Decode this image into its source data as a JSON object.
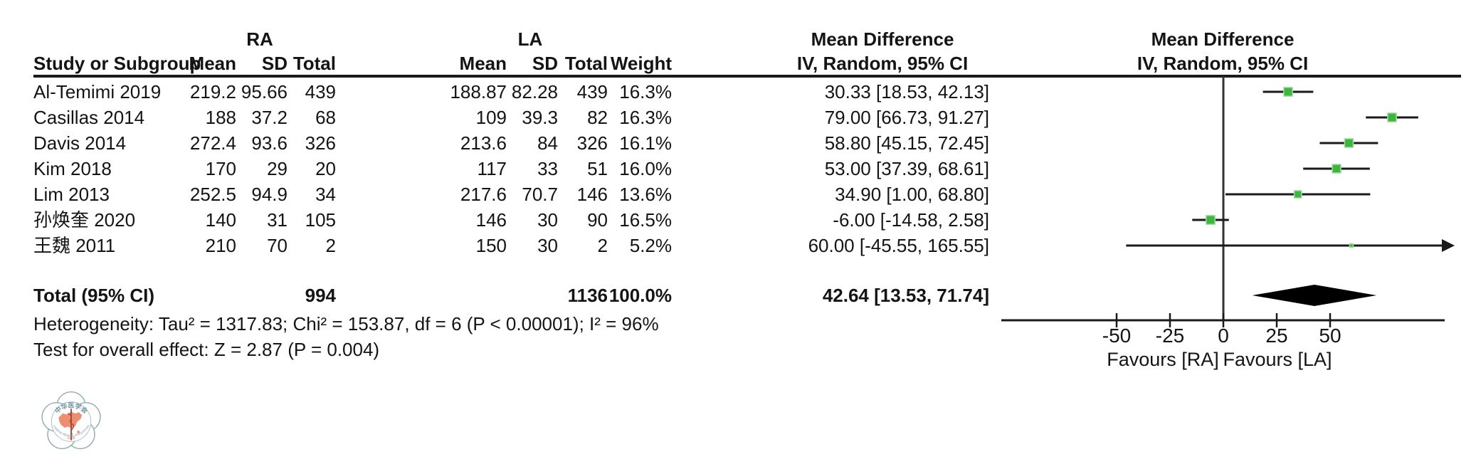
{
  "header": {
    "group_ra": "RA",
    "group_la": "LA",
    "col_study": "Study or Subgroup",
    "col_mean": "Mean",
    "col_sd": "SD",
    "col_total": "Total",
    "col_weight": "Weight",
    "md_title": "Mean Difference",
    "md_subtitle": "IV, Random, 95% CI",
    "plot_title": "Mean Difference",
    "plot_subtitle": "IV, Random, 95% CI"
  },
  "footnotes": {
    "heterogeneity": "Heterogeneity: Tau² = 1317.83; Chi² = 153.87, df = 6 (P < 0.00001); I² = 96%",
    "overall_effect": "Test for overall effect: Z = 2.87 (P = 0.004)"
  },
  "logo": {
    "top_text": "中华医学会",
    "bottom_text": "CHINESE MEDICAL ASSOCIATION",
    "year": "1915",
    "outline_color": "#8aa6ac",
    "text_color": "#6a93a0",
    "map_color": "#ee8e70",
    "staff_color": "#a14a38"
  },
  "chart_data": {
    "type": "forest",
    "effect_measure": "Mean Difference",
    "model": "IV, Random, 95% CI",
    "marker_color": "#3eb53e",
    "marker_edge_color": "#a4dca4",
    "line_color": "#1a1a1a",
    "diamond_color": "#000000",
    "studies": [
      {
        "name": "Al-Temimi 2019",
        "ra_mean": "219.2",
        "ra_sd": "95.66",
        "ra_total": "439",
        "la_mean": "188.87",
        "la_sd": "82.28",
        "la_total": "439",
        "weight": "16.3%",
        "ci_text": "30.33 [18.53, 42.13]",
        "md": 30.33,
        "lo": 18.53,
        "hi": 42.13,
        "w": 16.3
      },
      {
        "name": "Casillas 2014",
        "ra_mean": "188",
        "ra_sd": "37.2",
        "ra_total": "68",
        "la_mean": "109",
        "la_sd": "39.3",
        "la_total": "82",
        "weight": "16.3%",
        "ci_text": "79.00 [66.73, 91.27]",
        "md": 79.0,
        "lo": 66.73,
        "hi": 91.27,
        "w": 16.3
      },
      {
        "name": "Davis 2014",
        "ra_mean": "272.4",
        "ra_sd": "93.6",
        "ra_total": "326",
        "la_mean": "213.6",
        "la_sd": "84",
        "la_total": "326",
        "weight": "16.1%",
        "ci_text": "58.80 [45.15, 72.45]",
        "md": 58.8,
        "lo": 45.15,
        "hi": 72.45,
        "w": 16.1
      },
      {
        "name": "Kim 2018",
        "ra_mean": "170",
        "ra_sd": "29",
        "ra_total": "20",
        "la_mean": "117",
        "la_sd": "33",
        "la_total": "51",
        "weight": "16.0%",
        "ci_text": "53.00 [37.39, 68.61]",
        "md": 53.0,
        "lo": 37.39,
        "hi": 68.61,
        "w": 16.0
      },
      {
        "name": "Lim 2013",
        "ra_mean": "252.5",
        "ra_sd": "94.9",
        "ra_total": "34",
        "la_mean": "217.6",
        "la_sd": "70.7",
        "la_total": "146",
        "weight": "13.6%",
        "ci_text": "34.90 [1.00, 68.80]",
        "md": 34.9,
        "lo": 1.0,
        "hi": 68.8,
        "w": 13.6
      },
      {
        "name": "孙焕奎 2020",
        "ra_mean": "140",
        "ra_sd": "31",
        "ra_total": "105",
        "la_mean": "146",
        "la_sd": "30",
        "la_total": "90",
        "weight": "16.5%",
        "ci_text": "-6.00 [-14.58, 2.58]",
        "md": -6.0,
        "lo": -14.58,
        "hi": 2.58,
        "w": 16.5
      },
      {
        "name": "王魏 2011",
        "ra_mean": "210",
        "ra_sd": "70",
        "ra_total": "2",
        "la_mean": "150",
        "la_sd": "30",
        "la_total": "2",
        "weight": "5.2%",
        "ci_text": "60.00 [-45.55, 165.55]",
        "md": 60.0,
        "lo": -45.55,
        "hi": 165.55,
        "w": 5.2
      }
    ],
    "total": {
      "label": "Total (95% CI)",
      "ra_total": "994",
      "la_total": "1136",
      "weight": "100.0%",
      "ci_text": "42.64 [13.53, 71.74]",
      "md": 42.64,
      "lo": 13.53,
      "hi": 71.74
    },
    "axis": {
      "ticks": [
        -50,
        -25,
        0,
        25,
        50
      ],
      "tick_labels": [
        "-50",
        "-25",
        "0",
        "25",
        "50"
      ],
      "range": [
        -104,
        103.5
      ],
      "favours_left": "Favours [RA]",
      "favours_right": "Favours [LA]"
    }
  }
}
